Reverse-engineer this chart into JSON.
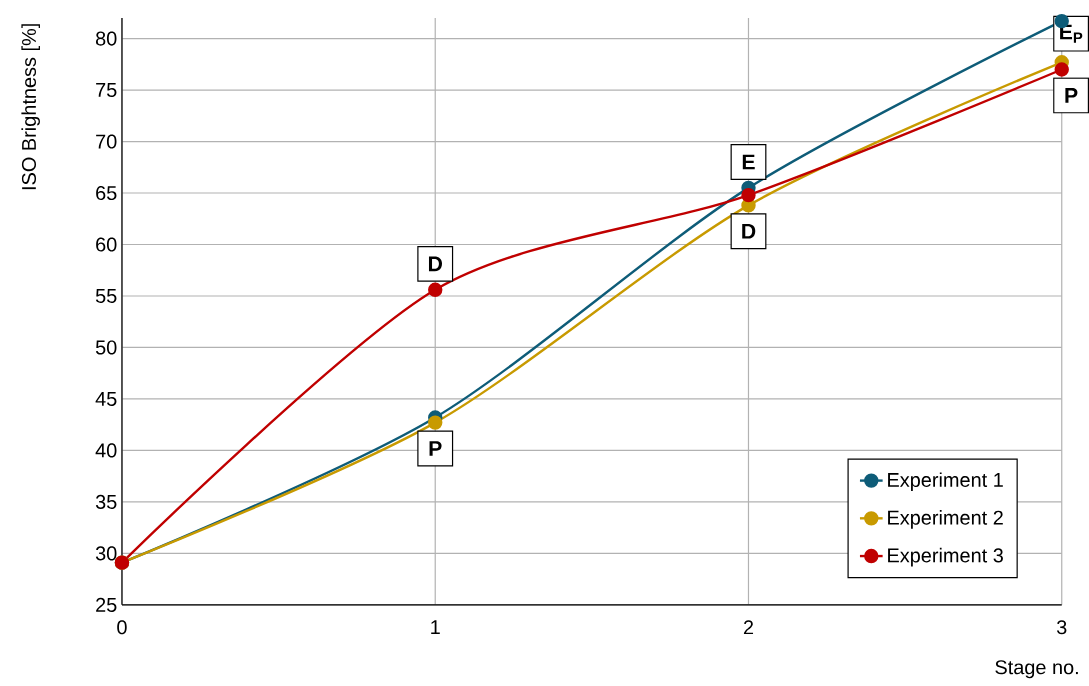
{
  "chart_data": {
    "type": "line",
    "xlabel": "Stage no.",
    "ylabel": "ISO Brightness [%]",
    "x": [
      0,
      1,
      2,
      3
    ],
    "xlim": [
      0,
      3
    ],
    "xticks": [
      0,
      1,
      2,
      3
    ],
    "ylim": [
      25,
      82
    ],
    "yticks": [
      25,
      30,
      35,
      40,
      45,
      50,
      55,
      60,
      65,
      70,
      75,
      80
    ],
    "series": [
      {
        "name": "Experiment 1",
        "color": "#0e5c78",
        "values": [
          29.1,
          43.2,
          65.5,
          81.7
        ]
      },
      {
        "name": "Experiment 2",
        "color": "#c89a00",
        "values": [
          29.1,
          42.7,
          63.8,
          77.7
        ]
      },
      {
        "name": "Experiment 3",
        "color": "#c00000",
        "values": [
          29.1,
          55.6,
          64.8,
          77.0
        ]
      }
    ],
    "annotations": [
      {
        "text": "D",
        "x": 1,
        "y": 55.6
      },
      {
        "text": "P",
        "x": 1,
        "y": 42.7
      },
      {
        "text": "E",
        "x": 2,
        "y": 65.5
      },
      {
        "text": "D",
        "x": 2,
        "y": 63.8
      },
      {
        "text": "E$_{P}$",
        "x": 3,
        "y": 81.7
      },
      {
        "text": "P",
        "x": 3,
        "y": 77.0
      }
    ],
    "grid": true,
    "legend": "bottom right",
    "marker": "circle",
    "line_style": "solid"
  }
}
